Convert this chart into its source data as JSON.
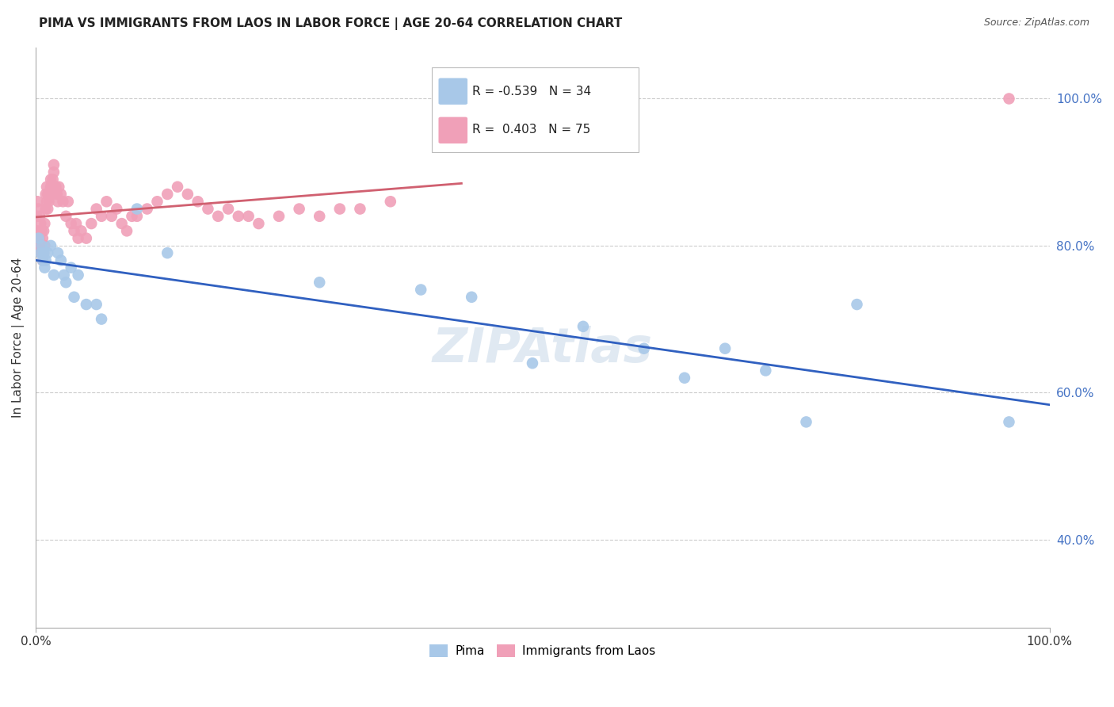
{
  "title": "PIMA VS IMMIGRANTS FROM LAOS IN LABOR FORCE | AGE 20-64 CORRELATION CHART",
  "source": "Source: ZipAtlas.com",
  "ylabel": "In Labor Force | Age 20-64",
  "xlim": [
    0.0,
    1.0
  ],
  "ylim": [
    0.28,
    1.07
  ],
  "ytick_vals": [
    0.4,
    0.6,
    0.8,
    1.0
  ],
  "ytick_labels": [
    "40.0%",
    "60.0%",
    "80.0%",
    "100.0%"
  ],
  "xtick_vals": [
    0.0,
    1.0
  ],
  "xtick_labels": [
    "0.0%",
    "100.0%"
  ],
  "watermark": "ZIPAtlas",
  "pima_x": [
    0.003,
    0.005,
    0.006,
    0.007,
    0.008,
    0.009,
    0.01,
    0.012,
    0.015,
    0.018,
    0.022,
    0.025,
    0.028,
    0.03,
    0.035,
    0.038,
    0.042,
    0.05,
    0.06,
    0.065,
    0.1,
    0.13,
    0.28,
    0.38,
    0.43,
    0.49,
    0.54,
    0.6,
    0.64,
    0.68,
    0.72,
    0.76,
    0.81,
    0.96
  ],
  "pima_y": [
    0.81,
    0.79,
    0.8,
    0.78,
    0.79,
    0.77,
    0.78,
    0.79,
    0.8,
    0.76,
    0.79,
    0.78,
    0.76,
    0.75,
    0.77,
    0.73,
    0.76,
    0.72,
    0.72,
    0.7,
    0.85,
    0.79,
    0.75,
    0.74,
    0.73,
    0.64,
    0.69,
    0.66,
    0.62,
    0.66,
    0.63,
    0.56,
    0.72,
    0.56
  ],
  "laos_x": [
    0.001,
    0.002,
    0.002,
    0.003,
    0.003,
    0.004,
    0.004,
    0.005,
    0.005,
    0.006,
    0.006,
    0.007,
    0.007,
    0.008,
    0.008,
    0.009,
    0.009,
    0.01,
    0.01,
    0.011,
    0.011,
    0.012,
    0.012,
    0.013,
    0.014,
    0.015,
    0.015,
    0.016,
    0.017,
    0.018,
    0.018,
    0.019,
    0.02,
    0.021,
    0.022,
    0.023,
    0.025,
    0.027,
    0.03,
    0.032,
    0.035,
    0.038,
    0.04,
    0.042,
    0.045,
    0.05,
    0.055,
    0.06,
    0.065,
    0.07,
    0.075,
    0.08,
    0.085,
    0.09,
    0.095,
    0.1,
    0.11,
    0.12,
    0.13,
    0.14,
    0.15,
    0.16,
    0.17,
    0.18,
    0.19,
    0.2,
    0.21,
    0.22,
    0.24,
    0.26,
    0.28,
    0.3,
    0.32,
    0.35,
    0.96
  ],
  "laos_y": [
    0.84,
    0.82,
    0.86,
    0.8,
    0.85,
    0.81,
    0.84,
    0.8,
    0.83,
    0.79,
    0.82,
    0.78,
    0.81,
    0.79,
    0.82,
    0.8,
    0.83,
    0.85,
    0.87,
    0.86,
    0.88,
    0.85,
    0.87,
    0.86,
    0.87,
    0.88,
    0.89,
    0.87,
    0.89,
    0.9,
    0.91,
    0.88,
    0.88,
    0.87,
    0.86,
    0.88,
    0.87,
    0.86,
    0.84,
    0.86,
    0.83,
    0.82,
    0.83,
    0.81,
    0.82,
    0.81,
    0.83,
    0.85,
    0.84,
    0.86,
    0.84,
    0.85,
    0.83,
    0.82,
    0.84,
    0.84,
    0.85,
    0.86,
    0.87,
    0.88,
    0.87,
    0.86,
    0.85,
    0.84,
    0.85,
    0.84,
    0.84,
    0.83,
    0.84,
    0.85,
    0.84,
    0.85,
    0.85,
    0.86,
    1.0
  ],
  "pima_color": "#a8c8e8",
  "laos_color": "#f0a0b8",
  "pima_line_color": "#3060c0",
  "laos_line_color": "#d06070",
  "background_color": "#ffffff",
  "grid_color": "#cccccc"
}
